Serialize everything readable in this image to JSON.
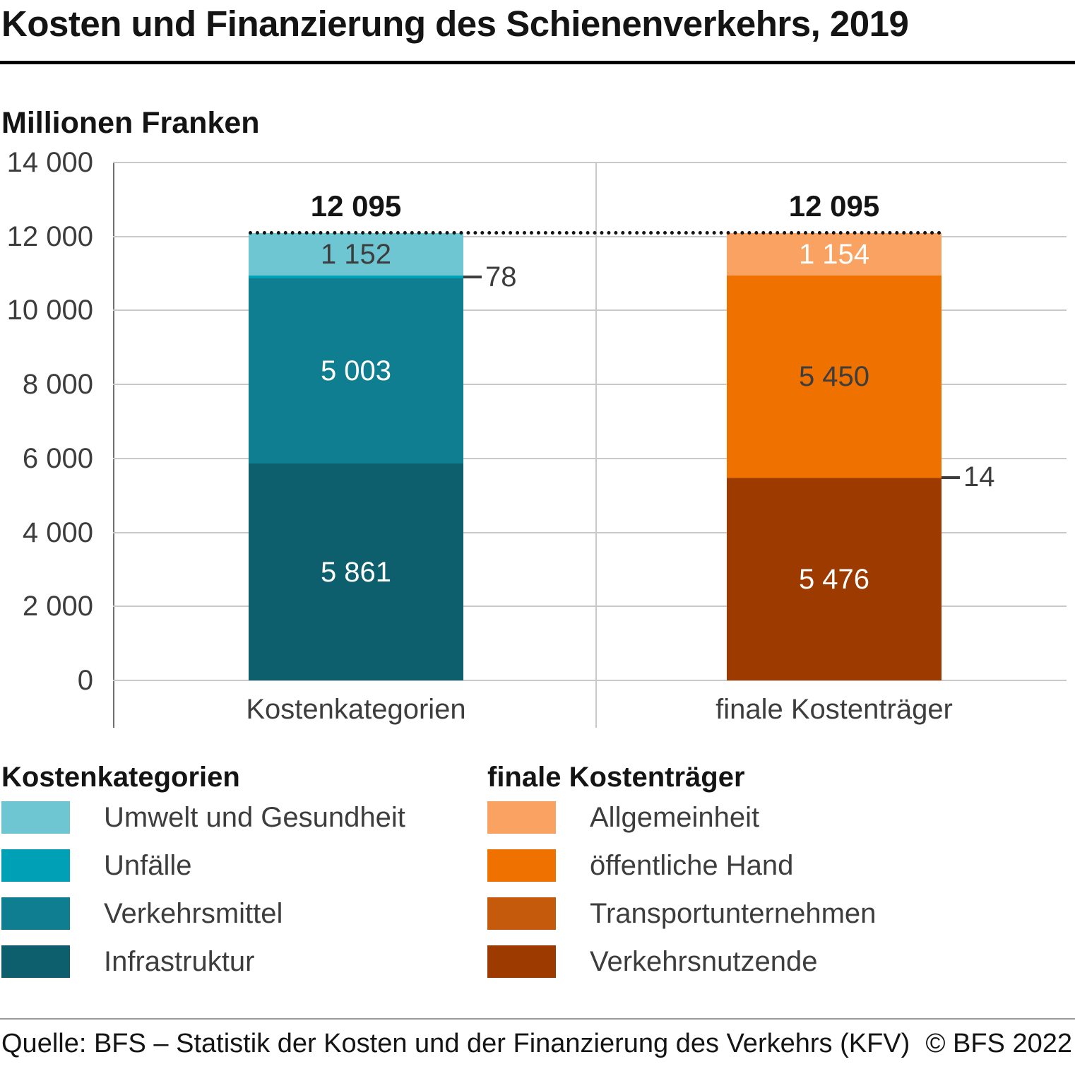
{
  "title": "Kosten und Finanzierung des Schienenverkehrs, 2019",
  "subtitle": "Millionen Franken",
  "footer": {
    "source": "Quelle: BFS – Statistik der Kosten und der Finanzierung des Verkehrs (KFV)",
    "copyright": "© BFS 2022"
  },
  "colors": {
    "umwelt_und_gesundheit": "#6fc6d3",
    "unfaelle": "#00a0b7",
    "verkehrsmittel": "#0f7e90",
    "infrastruktur": "#0e5f6d",
    "allgemeinheit": "#f9a262",
    "oeffentliche_hand": "#ef7100",
    "transportunternehmen": "#c65a0c",
    "verkehrsnutzende": "#9c3a00"
  },
  "chart_data": {
    "type": "bar",
    "stacked": true,
    "title": "Kosten und Finanzierung des Schienenverkehrs, 2019",
    "ylabel": "Millionen Franken",
    "ylim": [
      0,
      14000
    ],
    "ytick_step": 2000,
    "yticks": [
      {
        "value": 14000,
        "label": "14 000"
      },
      {
        "value": 12000,
        "label": "12 000"
      },
      {
        "value": 10000,
        "label": "10 000"
      },
      {
        "value": 8000,
        "label": "8 000"
      },
      {
        "value": 6000,
        "label": "6 000"
      },
      {
        "value": 4000,
        "label": "4 000"
      },
      {
        "value": 2000,
        "label": "2 000"
      },
      {
        "value": 0,
        "label": "0"
      }
    ],
    "grid": true,
    "dotted_line_value": 12095,
    "totals": [
      {
        "label": "12 095",
        "value": 12095
      },
      {
        "label": "12 095",
        "value": 12095
      }
    ],
    "bars": [
      {
        "category": "Kostenkategorien",
        "segments": [
          {
            "name": "Infrastruktur",
            "value": 5861,
            "label": "5 861",
            "color": "#0e5f6d",
            "label_color": "#ffffff",
            "callout": false
          },
          {
            "name": "Verkehrsmittel",
            "value": 5003,
            "label": "5 003",
            "color": "#0f7e90",
            "label_color": "#ffffff",
            "callout": false
          },
          {
            "name": "Unfälle",
            "value": 78,
            "label": "78",
            "color": "#00a0b7",
            "label_color": "#3d3d3d",
            "callout": true
          },
          {
            "name": "Umwelt und Gesundheit",
            "value": 1152,
            "label": "1 152",
            "color": "#6fc6d3",
            "label_color": "#3d3d3d",
            "callout": false
          }
        ]
      },
      {
        "category": "finale Kostenträger",
        "segments": [
          {
            "name": "Verkehrsnutzende",
            "value": 5476,
            "label": "5 476",
            "color": "#9c3a00",
            "label_color": "#ffffff",
            "callout": false
          },
          {
            "name": "Transportunternehmen",
            "value": 14,
            "label": "14",
            "color": "#c65a0c",
            "label_color": "#3d3d3d",
            "callout": true
          },
          {
            "name": "öffentliche Hand",
            "value": 5450,
            "label": "5 450",
            "color": "#ef7100",
            "label_color": "#3d3d3d",
            "callout": false
          },
          {
            "name": "Allgemeinheit",
            "value": 1154,
            "label": "1 154",
            "color": "#f9a262",
            "label_color": "#ffffff",
            "callout": false
          }
        ]
      }
    ]
  },
  "legend": {
    "left": {
      "title": "Kostenkategorien",
      "items": [
        {
          "label": "Umwelt und Gesundheit",
          "color": "#6fc6d3"
        },
        {
          "label": "Unfälle",
          "color": "#00a0b7"
        },
        {
          "label": "Verkehrsmittel",
          "color": "#0f7e90"
        },
        {
          "label": "Infrastruktur",
          "color": "#0e5f6d"
        }
      ]
    },
    "right": {
      "title": "finale Kostenträger",
      "items": [
        {
          "label": "Allgemeinheit",
          "color": "#f9a262"
        },
        {
          "label": "öffentliche Hand",
          "color": "#ef7100"
        },
        {
          "label": "Transportunternehmen",
          "color": "#c65a0c"
        },
        {
          "label": "Verkehrsnutzende",
          "color": "#9c3a00"
        }
      ]
    }
  }
}
